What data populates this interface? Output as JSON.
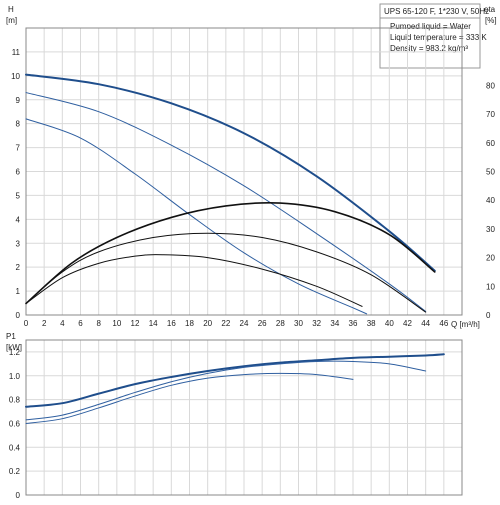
{
  "chart_data": [
    {
      "type": "line",
      "title": "UPS 65-120 F, 1*230 V, 50Hz",
      "annotations": [
        "Pumped liquid = Water",
        "Liquid temperature = 333 K",
        "Density = 983.2 kg/m³"
      ],
      "xlabel": "Q [m³/h]",
      "ylabel_left": "H",
      "ylabel_left_unit": "[m]",
      "ylabel_right": "eta",
      "ylabel_right_unit": "[%]",
      "xlim": [
        0,
        48
      ],
      "ylim_left": [
        0,
        12
      ],
      "ylim_right": [
        0,
        100
      ],
      "x_ticks": [
        "0",
        "2",
        "4",
        "6",
        "8",
        "10",
        "12",
        "14",
        "16",
        "18",
        "20",
        "22",
        "24",
        "26",
        "28",
        "30",
        "32",
        "34",
        "36",
        "38",
        "40",
        "42",
        "44",
        "46"
      ],
      "y_ticks_left": [
        "0",
        "1",
        "2",
        "3",
        "4",
        "5",
        "6",
        "7",
        "8",
        "9",
        "10",
        "11"
      ],
      "y_ticks_right": [
        "0",
        "10",
        "20",
        "30",
        "40",
        "50",
        "60",
        "70",
        "80"
      ],
      "grid": true,
      "series": [
        {
          "kind": "head",
          "speed": 3,
          "color": "#1f4e8c",
          "width": 2.0,
          "x": [
            0,
            8,
            16,
            24,
            32,
            40,
            45
          ],
          "y": [
            10.05,
            9.65,
            8.85,
            7.6,
            5.8,
            3.5,
            1.85
          ]
        },
        {
          "kind": "head",
          "speed": 2,
          "color": "#2f5fa0",
          "width": 1.0,
          "x": [
            0,
            8,
            16,
            24,
            32,
            40,
            44
          ],
          "y": [
            9.3,
            8.5,
            7.1,
            5.4,
            3.4,
            1.3,
            0.15
          ]
        },
        {
          "kind": "head",
          "speed": 1,
          "color": "#2f5fa0",
          "width": 1.0,
          "x": [
            0,
            6,
            12,
            18,
            24,
            30,
            36,
            37.5
          ],
          "y": [
            8.2,
            7.4,
            5.9,
            4.2,
            2.6,
            1.3,
            0.3,
            0.05
          ]
        },
        {
          "kind": "eta",
          "speed": 3,
          "color": "#111111",
          "width": 1.6,
          "x": [
            0,
            5,
            10,
            16,
            22,
            28,
            34,
            40,
            45
          ],
          "y": [
            4,
            18,
            27,
            34,
            38,
            39,
            36,
            28,
            15
          ]
        },
        {
          "kind": "eta",
          "speed": 2,
          "color": "#111111",
          "width": 1.0,
          "x": [
            0,
            4,
            8,
            14,
            20,
            26,
            32,
            38,
            44
          ],
          "y": [
            4,
            15,
            22,
            27,
            28.5,
            27,
            22,
            14,
            1
          ]
        },
        {
          "kind": "eta",
          "speed": 1,
          "color": "#111111",
          "width": 1.0,
          "x": [
            0,
            4,
            8,
            12,
            15,
            20,
            26,
            32,
            37
          ],
          "y": [
            4,
            13,
            18,
            20.5,
            21,
            20,
            16,
            10,
            3
          ]
        }
      ]
    },
    {
      "type": "line",
      "ylabel": "P1",
      "ylabel_unit": "[kW]",
      "xlim": [
        0,
        48
      ],
      "ylim": [
        0,
        1.3
      ],
      "y_ticks": [
        "0",
        "0.2",
        "0.4",
        "0.6",
        "0.8",
        "1.0",
        "1.2"
      ],
      "grid": true,
      "series": [
        {
          "speed": 3,
          "color": "#1f4e8c",
          "width": 2.0,
          "x": [
            0,
            4,
            8,
            12,
            16,
            20,
            24,
            28,
            32,
            36,
            40,
            44,
            46
          ],
          "y": [
            0.74,
            0.77,
            0.85,
            0.93,
            0.99,
            1.04,
            1.08,
            1.11,
            1.13,
            1.15,
            1.16,
            1.17,
            1.18
          ]
        },
        {
          "speed": 2,
          "color": "#2f5fa0",
          "width": 1.0,
          "x": [
            0,
            4,
            8,
            12,
            16,
            20,
            24,
            28,
            32,
            36,
            40,
            44
          ],
          "y": [
            0.63,
            0.67,
            0.76,
            0.86,
            0.95,
            1.02,
            1.07,
            1.1,
            1.12,
            1.12,
            1.1,
            1.04
          ]
        },
        {
          "speed": 1,
          "color": "#2f5fa0",
          "width": 1.0,
          "x": [
            0,
            4,
            8,
            12,
            16,
            20,
            24,
            28,
            32,
            36
          ],
          "y": [
            0.6,
            0.64,
            0.73,
            0.83,
            0.92,
            0.98,
            1.01,
            1.02,
            1.01,
            0.97
          ]
        }
      ]
    }
  ]
}
